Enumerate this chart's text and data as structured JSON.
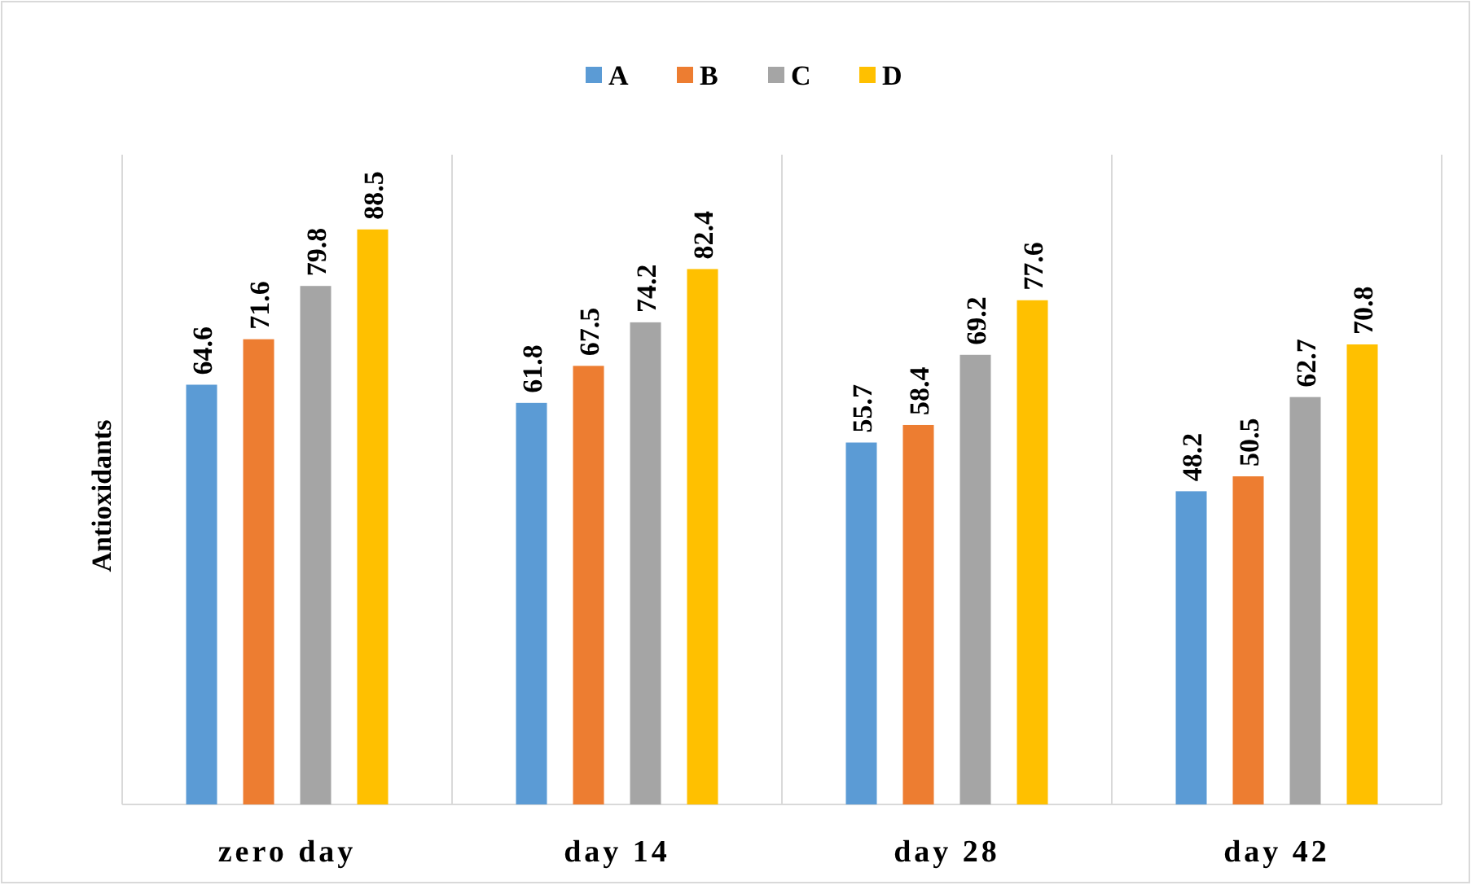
{
  "chart_data": {
    "type": "bar",
    "ylabel": "Antioxidants",
    "categories": [
      "zero day",
      "day 14",
      "day 28",
      "day 42"
    ],
    "series": [
      {
        "name": "A",
        "color": "#5b9bd5",
        "values": [
          64.6,
          61.8,
          55.7,
          48.2
        ]
      },
      {
        "name": "B",
        "color": "#ed7d31",
        "values": [
          71.6,
          67.5,
          58.4,
          50.5
        ]
      },
      {
        "name": "C",
        "color": "#a5a5a5",
        "values": [
          79.8,
          74.2,
          69.2,
          62.7
        ]
      },
      {
        "name": "D",
        "color": "#ffc000",
        "values": [
          88.5,
          82.4,
          77.6,
          70.8
        ]
      }
    ],
    "ylim": [
      0,
      100
    ],
    "tick_labels": "x",
    "data_labels": true,
    "grid": "x",
    "legend": "top"
  }
}
